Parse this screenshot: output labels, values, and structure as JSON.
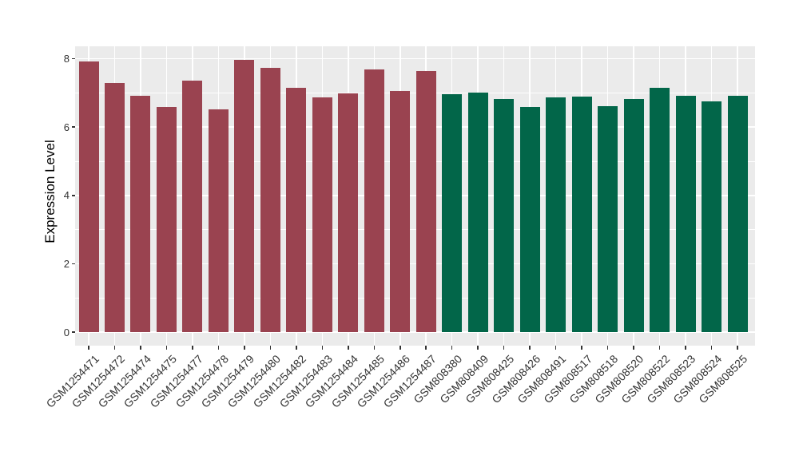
{
  "chart_data": {
    "type": "bar",
    "title": "",
    "xlabel": "",
    "ylabel": "Expression Level",
    "categories": [
      "GSM1254471",
      "GSM1254472",
      "GSM1254474",
      "GSM1254475",
      "GSM1254477",
      "GSM1254478",
      "GSM1254479",
      "GSM1254480",
      "GSM1254482",
      "GSM1254483",
      "GSM1254484",
      "GSM1254485",
      "GSM1254486",
      "GSM1254487",
      "GSM808380",
      "GSM808409",
      "GSM808425",
      "GSM808426",
      "GSM808491",
      "GSM808517",
      "GSM808518",
      "GSM808520",
      "GSM808522",
      "GSM808523",
      "GSM808524",
      "GSM808525"
    ],
    "values": [
      7.93,
      7.29,
      6.92,
      6.6,
      7.35,
      6.52,
      7.97,
      7.73,
      7.14,
      6.86,
      6.98,
      7.68,
      7.05,
      7.63,
      6.96,
      7.0,
      6.82,
      6.6,
      6.86,
      6.9,
      6.61,
      6.82,
      7.16,
      6.91,
      6.76,
      6.91
    ],
    "bar_group_index": [
      0,
      0,
      0,
      0,
      0,
      0,
      0,
      0,
      0,
      0,
      0,
      0,
      0,
      0,
      1,
      1,
      1,
      1,
      1,
      1,
      1,
      1,
      1,
      1,
      1,
      1
    ],
    "group_colors": [
      "#9A4350",
      "#026649"
    ],
    "ylim": [
      0,
      8.36
    ],
    "yticks": [
      0,
      2,
      4,
      6,
      8
    ],
    "yticks_minor": [
      1,
      3,
      5,
      7
    ],
    "grid": "horizontal major+minor white, vertical white at category centers",
    "legend_position": "none",
    "x_tick_angle_deg": 45
  },
  "style": {
    "panel_background": "#EBEBEB",
    "gridline_color": "#FFFFFF",
    "axis_text_color": "#333333",
    "tick_mark_color": "#333333",
    "axis_title_color": "#000000",
    "figure_background": "#FFFFFF"
  }
}
